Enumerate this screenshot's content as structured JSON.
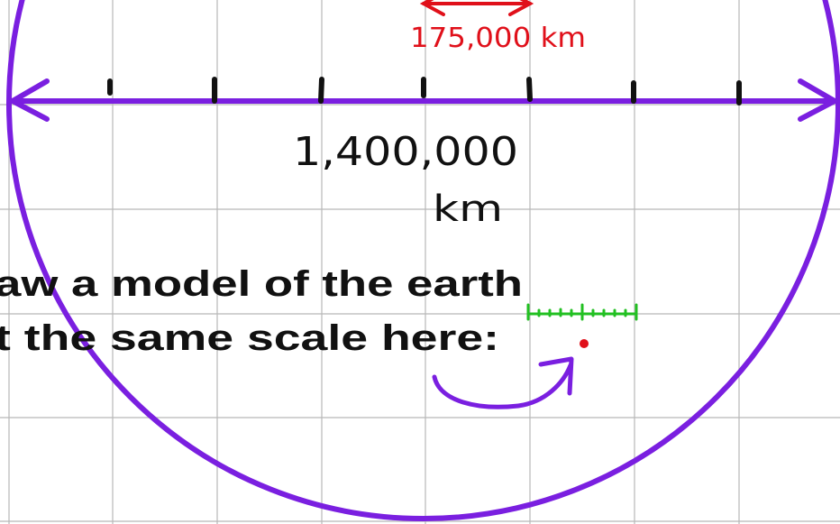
{
  "annotations": {
    "small_distance": "175,000 km",
    "diameter_number": "1,400,000",
    "diameter_unit": "km"
  },
  "prompt": {
    "line1": "aw a model of the earth",
    "line2": "t the same scale here:"
  }
}
